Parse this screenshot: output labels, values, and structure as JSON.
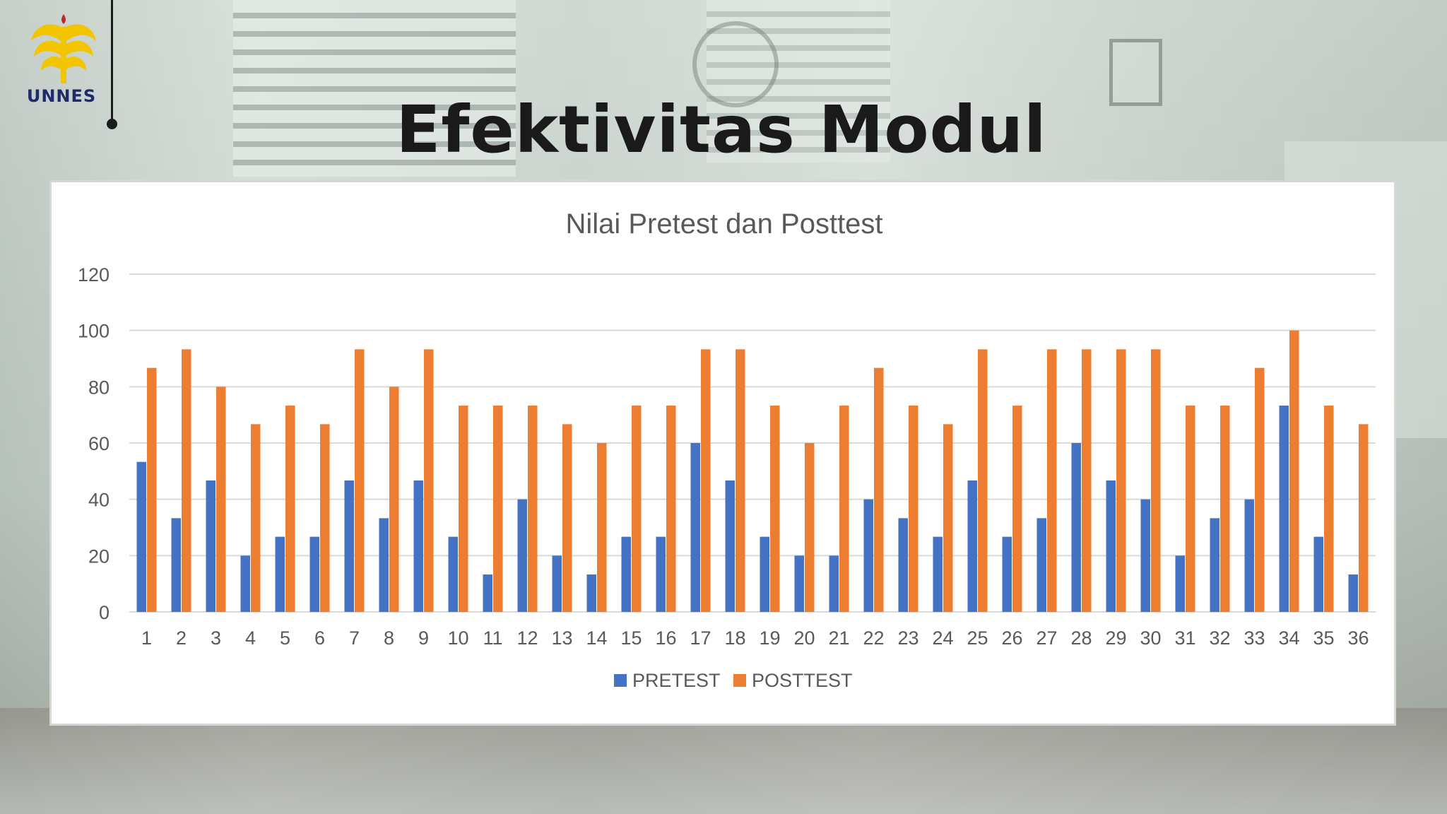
{
  "slide": {
    "title": "Efektivitas Modul",
    "logo_text": "UNNES"
  },
  "colors": {
    "pretest": "#4472C4",
    "posttest": "#ED7D31",
    "grid": "#d9d9d9",
    "logo_gold": "#f2c500",
    "logo_text": "#1d2a6b",
    "logo_flame": "#c0282d"
  },
  "chart_data": {
    "type": "bar",
    "title": "Nilai Pretest dan Posttest",
    "xlabel": "",
    "ylabel": "",
    "ylim": [
      0,
      120
    ],
    "yticks": [
      0,
      20,
      40,
      60,
      80,
      100,
      120
    ],
    "grid": true,
    "legend_position": "bottom",
    "categories": [
      "1",
      "2",
      "3",
      "4",
      "5",
      "6",
      "7",
      "8",
      "9",
      "10",
      "11",
      "12",
      "13",
      "14",
      "15",
      "16",
      "17",
      "18",
      "19",
      "20",
      "21",
      "22",
      "23",
      "24",
      "25",
      "26",
      "27",
      "28",
      "29",
      "30",
      "31",
      "32",
      "33",
      "34",
      "35",
      "36"
    ],
    "series": [
      {
        "name": "PRETEST",
        "color": "#4472C4",
        "values": [
          53.3,
          33.3,
          46.7,
          20,
          26.7,
          26.7,
          46.7,
          33.3,
          46.7,
          26.7,
          13.3,
          40,
          20,
          13.3,
          26.7,
          26.7,
          60,
          46.7,
          26.7,
          20,
          20,
          40,
          33.3,
          26.7,
          46.7,
          26.7,
          33.3,
          60,
          46.7,
          40,
          20,
          33.3,
          40,
          73.3,
          26.7,
          13.3
        ]
      },
      {
        "name": "POSTTEST",
        "color": "#ED7D31",
        "values": [
          86.7,
          93.3,
          80,
          66.7,
          73.3,
          66.7,
          93.3,
          80,
          93.3,
          73.3,
          73.3,
          73.3,
          66.7,
          60,
          73.3,
          73.3,
          93.3,
          93.3,
          73.3,
          60,
          73.3,
          86.7,
          73.3,
          66.7,
          93.3,
          73.3,
          93.3,
          93.3,
          93.3,
          93.3,
          73.3,
          73.3,
          86.7,
          100,
          73.3,
          66.7
        ]
      }
    ]
  }
}
